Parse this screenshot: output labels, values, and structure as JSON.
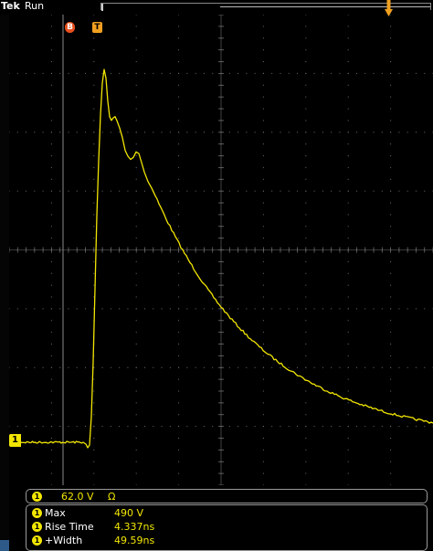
{
  "header": {
    "brand": "Tek",
    "state": "Run"
  },
  "markers": {
    "bus_marker": "B",
    "trigger_marker": "T"
  },
  "channel": {
    "tag": "1",
    "scale": "62.0 V",
    "coupling": "Ω"
  },
  "measurements": [
    {
      "ch": "1",
      "label": "Max",
      "value": "490 V"
    },
    {
      "ch": "1",
      "label": "Rise Time",
      "value": "4.337ns"
    },
    {
      "ch": "1",
      "label": "+Width",
      "value": "49.59ns"
    }
  ],
  "icons": {
    "trigger_position": "down-arrow-icon",
    "ground_marker": "channel-ground-icon"
  },
  "colors": {
    "background": "#000000",
    "channel1": "#f2e600",
    "graticule": "#6e6e6e",
    "trigger": "#f0a020",
    "bus": "#e8501e"
  }
}
